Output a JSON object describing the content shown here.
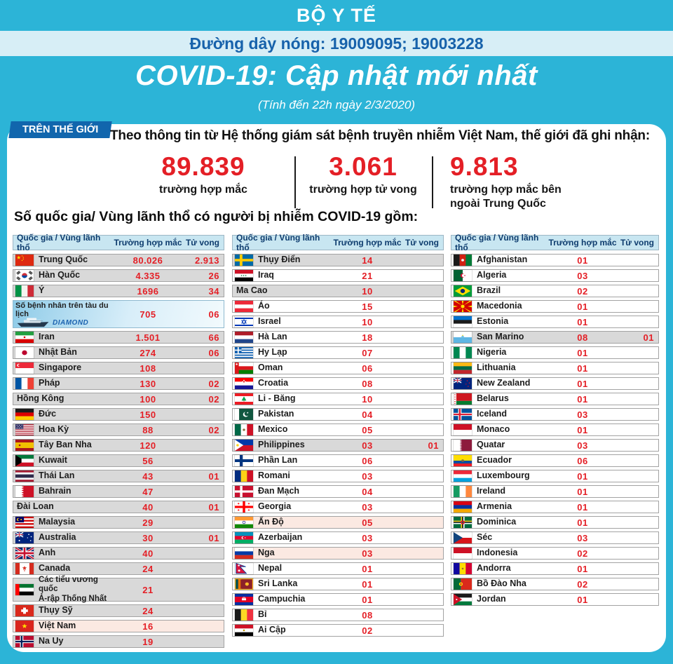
{
  "header": {
    "ministry": "BỘ Y TẾ",
    "hotline": "Đường dây nóng: 19009095; 19003228",
    "title": "COVID-19: Cập nhật mới nhất",
    "date_note": "(Tính đến 22h ngày 2/3/2020)"
  },
  "world": {
    "badge": "TRÊN THẾ GIỚI",
    "intro": "Theo thông tin từ Hệ thống giám sát bệnh truyền nhiễm Việt Nam, thế giới đã ghi nhận:",
    "stats": [
      {
        "value": "89.839",
        "label": "trường hợp mắc"
      },
      {
        "value": "3.061",
        "label": "trường hợp tử vong"
      },
      {
        "value": "9.813",
        "label": "trường hợp mắc bên\nngoài Trung Quốc"
      }
    ],
    "section_title": "Số quốc gia/ Vùng lãnh thổ có người bị nhiễm COVID-19 gồm:"
  },
  "colors": {
    "cyan_background": "#2cb4d7",
    "hotline_bar": "#d7eef6",
    "hotline_text": "#1762ab",
    "badge_blue": "#1166ad",
    "number_red": "#e41f26",
    "table_header_bg": "#c8e6f1",
    "table_header_text": "#0e3c6e",
    "row_gray": "#d9d9d9",
    "row_pink": "#fbe9e2"
  },
  "table": {
    "columns": {
      "country": "Quốc gia / Vùng lãnh thổ",
      "cases": "Trường hợp mắc",
      "deaths": "Tử vong"
    },
    "col1": [
      {
        "flag": "cn",
        "name": "Trung Quốc",
        "cases": "80.026",
        "deaths": "2.913",
        "bg": "gray"
      },
      {
        "flag": "kr",
        "name": "Hàn Quốc",
        "cases": "4.335",
        "deaths": "26",
        "bg": "gray"
      },
      {
        "flag": "it",
        "name": "Ý",
        "cases": "1696",
        "deaths": "34",
        "bg": "gray"
      },
      {
        "flag": "ship",
        "name": "Số bệnh nhân trên tàu du lịch",
        "name2": "DIAMOND",
        "cases": "705",
        "deaths": "06",
        "bg": "ship"
      },
      {
        "flag": "ir",
        "name": "Iran",
        "cases": "1.501",
        "deaths": "66",
        "bg": "gray"
      },
      {
        "flag": "jp",
        "name": "Nhật Bản",
        "cases": "274",
        "deaths": "06",
        "bg": "gray"
      },
      {
        "flag": "sg",
        "name": "Singapore",
        "cases": "108",
        "deaths": "",
        "bg": "gray"
      },
      {
        "flag": "fr",
        "name": "Pháp",
        "cases": "130",
        "deaths": "02",
        "bg": "gray"
      },
      {
        "flag": null,
        "name": "Hồng Kông",
        "cases": "100",
        "deaths": "02",
        "bg": "gray"
      },
      {
        "flag": "de",
        "name": "Đức",
        "cases": "150",
        "deaths": "",
        "bg": "gray"
      },
      {
        "flag": "us",
        "name": "Hoa Kỳ",
        "cases": "88",
        "deaths": "02",
        "bg": "gray"
      },
      {
        "flag": "es",
        "name": "Tây Ban Nha",
        "cases": "120",
        "deaths": "",
        "bg": "gray"
      },
      {
        "flag": "kw",
        "name": "Kuwait",
        "cases": "56",
        "deaths": "",
        "bg": "gray"
      },
      {
        "flag": "th",
        "name": "Thái Lan",
        "cases": "43",
        "deaths": "01",
        "bg": "gray"
      },
      {
        "flag": "bh",
        "name": "Bahrain",
        "cases": "47",
        "deaths": "",
        "bg": "gray"
      },
      {
        "flag": null,
        "name": "Đài Loan",
        "cases": "40",
        "deaths": "01",
        "bg": "gray"
      },
      {
        "flag": "my",
        "name": "Malaysia",
        "cases": "29",
        "deaths": "",
        "bg": "gray"
      },
      {
        "flag": "au",
        "name": "Australia",
        "cases": "30",
        "deaths": "01",
        "bg": "gray"
      },
      {
        "flag": "gb",
        "name": "Anh",
        "cases": "40",
        "deaths": "",
        "bg": "gray"
      },
      {
        "flag": "ca",
        "name": "Canada",
        "cases": "24",
        "deaths": "",
        "bg": "gray"
      },
      {
        "flag": "ae",
        "name": "Các tiểu vương quốc",
        "name2": "Ả-rập Thống Nhất",
        "cases": "21",
        "deaths": "",
        "bg": "gray",
        "tall": true
      },
      {
        "flag": "ch",
        "name": "Thụy Sỹ",
        "cases": "24",
        "deaths": "",
        "bg": "gray"
      },
      {
        "flag": "vn",
        "name": "Việt Nam",
        "cases": "16",
        "deaths": "",
        "bg": "pink"
      },
      {
        "flag": "no",
        "name": "Na Uy",
        "cases": "19",
        "deaths": "",
        "bg": "gray"
      }
    ],
    "col2": [
      {
        "flag": "se",
        "name": "Thụy Điển",
        "cases": "14",
        "deaths": "",
        "bg": "gray"
      },
      {
        "flag": "iq",
        "name": "Iraq",
        "cases": "21",
        "deaths": "",
        "bg": "white"
      },
      {
        "flag": null,
        "name": "Ma Cao",
        "cases": "10",
        "deaths": "",
        "bg": "gray"
      },
      {
        "flag": "at",
        "name": "Áo",
        "cases": "15",
        "deaths": "",
        "bg": "white"
      },
      {
        "flag": "il",
        "name": "Israel",
        "cases": "10",
        "deaths": "",
        "bg": "white"
      },
      {
        "flag": "nl",
        "name": "Hà Lan",
        "cases": "18",
        "deaths": "",
        "bg": "white"
      },
      {
        "flag": "gr",
        "name": "Hy Lạp",
        "cases": "07",
        "deaths": "",
        "bg": "white"
      },
      {
        "flag": "om",
        "name": "Oman",
        "cases": "06",
        "deaths": "",
        "bg": "white"
      },
      {
        "flag": "hr",
        "name": "Croatia",
        "cases": "08",
        "deaths": "",
        "bg": "white"
      },
      {
        "flag": "lb",
        "name": "Li - Băng",
        "cases": "10",
        "deaths": "",
        "bg": "white"
      },
      {
        "flag": "pk",
        "name": "Pakistan",
        "cases": "04",
        "deaths": "",
        "bg": "white"
      },
      {
        "flag": "mx",
        "name": "Mexico",
        "cases": "05",
        "deaths": "",
        "bg": "white"
      },
      {
        "flag": "ph",
        "name": "Philippines",
        "cases": "03",
        "deaths": "01",
        "bg": "gray"
      },
      {
        "flag": "fi",
        "name": "Phần Lan",
        "cases": "06",
        "deaths": "",
        "bg": "white"
      },
      {
        "flag": "ro",
        "name": "Romani",
        "cases": "03",
        "deaths": "",
        "bg": "white"
      },
      {
        "flag": "dk",
        "name": "Đan Mạch",
        "cases": "04",
        "deaths": "",
        "bg": "white"
      },
      {
        "flag": "ge",
        "name": "Georgia",
        "cases": "03",
        "deaths": "",
        "bg": "white"
      },
      {
        "flag": "in",
        "name": "Ấn Độ",
        "cases": "05",
        "deaths": "",
        "bg": "pink"
      },
      {
        "flag": "az",
        "name": "Azerbaijan",
        "cases": "03",
        "deaths": "",
        "bg": "white"
      },
      {
        "flag": "ru",
        "name": "Nga",
        "cases": "03",
        "deaths": "",
        "bg": "pink"
      },
      {
        "flag": "np",
        "name": "Nepal",
        "cases": "01",
        "deaths": "",
        "bg": "white"
      },
      {
        "flag": "lk",
        "name": "Sri Lanka",
        "cases": "01",
        "deaths": "",
        "bg": "white"
      },
      {
        "flag": "kh",
        "name": "Campuchia",
        "cases": "01",
        "deaths": "",
        "bg": "white"
      },
      {
        "flag": "be",
        "name": "Bỉ",
        "cases": "08",
        "deaths": "",
        "bg": "white"
      },
      {
        "flag": "eg",
        "name": "Ai Cập",
        "cases": "02",
        "deaths": "",
        "bg": "white"
      }
    ],
    "col3": [
      {
        "flag": "af",
        "name": "Afghanistan",
        "cases": "01",
        "deaths": "",
        "bg": "white"
      },
      {
        "flag": "dz",
        "name": "Algeria",
        "cases": "03",
        "deaths": "",
        "bg": "white"
      },
      {
        "flag": "br",
        "name": "Brazil",
        "cases": "02",
        "deaths": "",
        "bg": "white"
      },
      {
        "flag": "mk",
        "name": "Macedonia",
        "cases": "01",
        "deaths": "",
        "bg": "white"
      },
      {
        "flag": "ee",
        "name": "Estonia",
        "cases": "01",
        "deaths": "",
        "bg": "white"
      },
      {
        "flag": "sm",
        "name": "San Marino",
        "cases": "08",
        "deaths": "01",
        "bg": "gray"
      },
      {
        "flag": "ng",
        "name": "Nigeria",
        "cases": "01",
        "deaths": "",
        "bg": "white"
      },
      {
        "flag": "lt",
        "name": "Lithuania",
        "cases": "01",
        "deaths": "",
        "bg": "white"
      },
      {
        "flag": "nz",
        "name": "New Zealand",
        "cases": "01",
        "deaths": "",
        "bg": "white"
      },
      {
        "flag": "by",
        "name": "Belarus",
        "cases": "01",
        "deaths": "",
        "bg": "white"
      },
      {
        "flag": "is",
        "name": "Iceland",
        "cases": "03",
        "deaths": "",
        "bg": "white"
      },
      {
        "flag": "mc",
        "name": "Monaco",
        "cases": "01",
        "deaths": "",
        "bg": "white"
      },
      {
        "flag": "qa",
        "name": "Quatar",
        "cases": "03",
        "deaths": "",
        "bg": "white"
      },
      {
        "flag": "ec",
        "name": "Ecuador",
        "cases": "06",
        "deaths": "",
        "bg": "white"
      },
      {
        "flag": "lu",
        "name": "Luxembourg",
        "cases": "01",
        "deaths": "",
        "bg": "white"
      },
      {
        "flag": "ie",
        "name": "Ireland",
        "cases": "01",
        "deaths": "",
        "bg": "white"
      },
      {
        "flag": "am",
        "name": "Armenia",
        "cases": "01",
        "deaths": "",
        "bg": "white"
      },
      {
        "flag": "dm",
        "name": "Dominica",
        "cases": "01",
        "deaths": "",
        "bg": "white"
      },
      {
        "flag": "cz",
        "name": "Séc",
        "cases": "03",
        "deaths": "",
        "bg": "white"
      },
      {
        "flag": "id",
        "name": "Indonesia",
        "cases": "02",
        "deaths": "",
        "bg": "white"
      },
      {
        "flag": "ad",
        "name": "Andorra",
        "cases": "01",
        "deaths": "",
        "bg": "white"
      },
      {
        "flag": "pt",
        "name": "Bồ Đào Nha",
        "cases": "02",
        "deaths": "",
        "bg": "white"
      },
      {
        "flag": "jo",
        "name": "Jordan",
        "cases": "01",
        "deaths": "",
        "bg": "white"
      }
    ]
  }
}
